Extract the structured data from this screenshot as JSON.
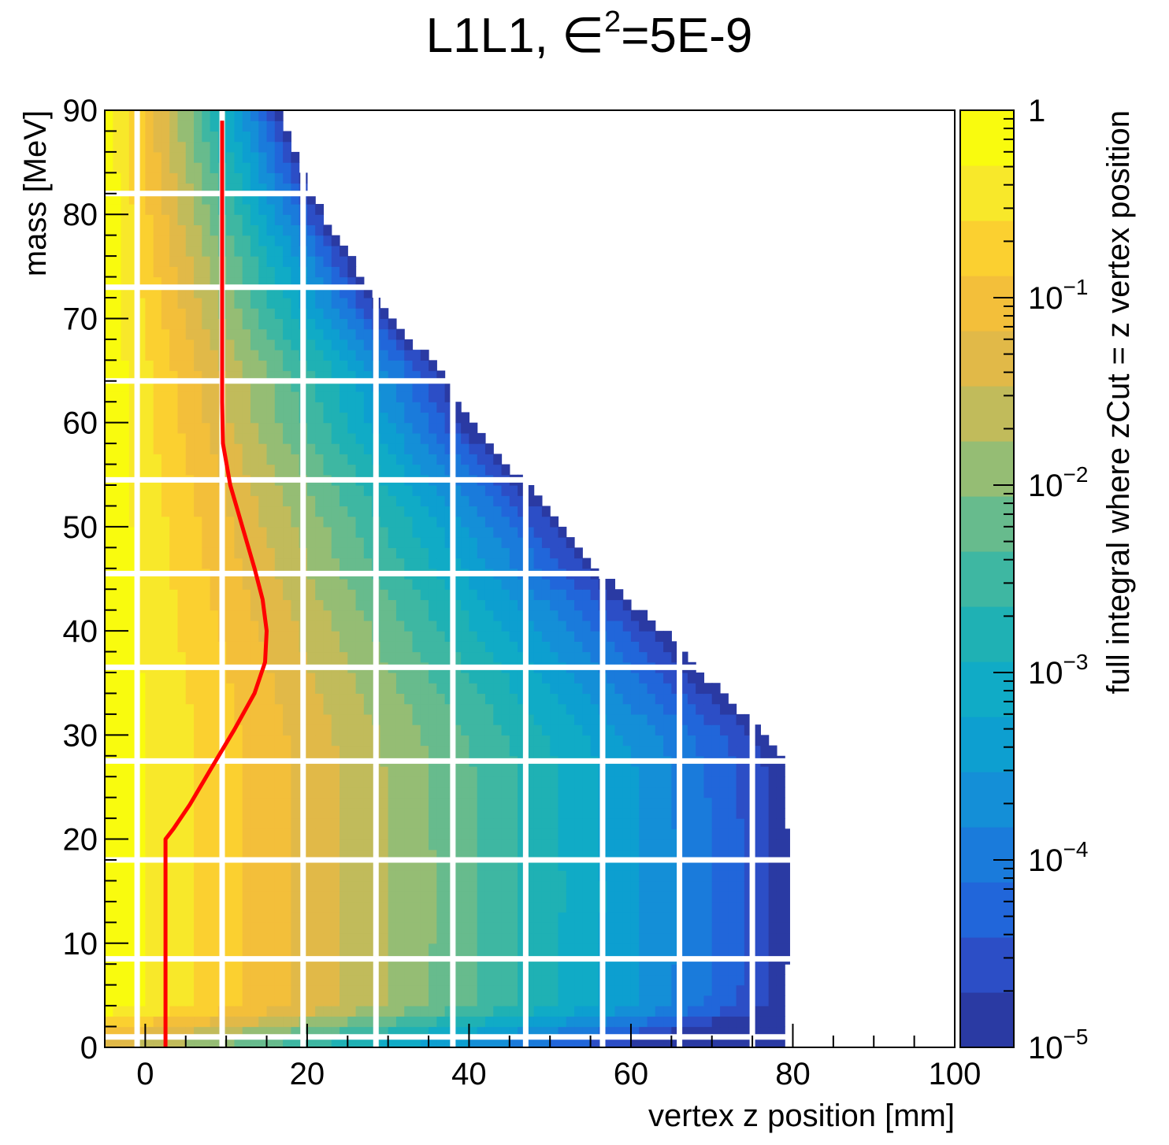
{
  "chart_data": {
    "type": "heatmap",
    "title_prefix": "L1L1, ",
    "title_symbol": "∈",
    "title_exponent": "2",
    "title_suffix": "=5E-9",
    "xlabel": "vertex z position [mm]",
    "ylabel": "mass [MeV]",
    "zlabel": "full integral where zCut = z vertex position",
    "xlim": [
      -5,
      100
    ],
    "ylim": [
      0,
      90
    ],
    "x_ticks": [
      "0",
      "20",
      "40",
      "60",
      "80",
      "100"
    ],
    "x_tick_values": [
      0,
      20,
      40,
      60,
      80,
      100
    ],
    "y_ticks": [
      "0",
      "10",
      "20",
      "30",
      "40",
      "50",
      "60",
      "70",
      "80",
      "90"
    ],
    "y_tick_values": [
      0,
      10,
      20,
      30,
      40,
      50,
      60,
      70,
      80,
      90
    ],
    "z_scale": "log",
    "zlim": [
      1e-05,
      1
    ],
    "z_ticks": [
      {
        "base": "1",
        "exp": "",
        "value": 1
      },
      {
        "base": "10",
        "exp": "−1",
        "value": 0.1
      },
      {
        "base": "10",
        "exp": "−2",
        "value": 0.01
      },
      {
        "base": "10",
        "exp": "−3",
        "value": 0.001
      },
      {
        "base": "10",
        "exp": "−4",
        "value": 0.0001
      },
      {
        "base": "10",
        "exp": "−5",
        "value": 1e-05
      }
    ],
    "palette": [
      "#2a3aa3",
      "#2c4ec6",
      "#2166da",
      "#1a7bdb",
      "#148fd7",
      "#0d9fd0",
      "#10abc6",
      "#1fb1b4",
      "#3eb7a2",
      "#67bb8d",
      "#95bd74",
      "#c1bb5b",
      "#e1b948",
      "#f3bf3a",
      "#fbd030",
      "#f8e82a",
      "#f9fb0e"
    ],
    "grid": "white lines at x = -1, 9.5, 19.5, 28.5, 38, 47, 56.5, 66, 75, 80; y = 1, 8.5, 18, 27.5, 36.5, 45.5, 54.5, 64, 73, 82",
    "max_z_at_mass": [
      {
        "mass": 1,
        "max_z": 79
      },
      {
        "mass": 15,
        "max_z": 80
      },
      {
        "mass": 27,
        "max_z": 79
      },
      {
        "mass": 30,
        "max_z": 77
      },
      {
        "mass": 35,
        "max_z": 70
      },
      {
        "mass": 40,
        "max_z": 64
      },
      {
        "mass": 45,
        "max_z": 57
      },
      {
        "mass": 50,
        "max_z": 52
      },
      {
        "mass": 55,
        "max_z": 46
      },
      {
        "mass": 60,
        "max_z": 40
      },
      {
        "mass": 65,
        "max_z": 37
      },
      {
        "mass": 70,
        "max_z": 30
      },
      {
        "mass": 75,
        "max_z": 26
      },
      {
        "mass": 80,
        "max_z": 22
      },
      {
        "mass": 85,
        "max_z": 19
      },
      {
        "mass": 89,
        "max_z": 17
      }
    ],
    "series": [
      {
        "color": "#ff0000",
        "x": [
          2.5,
          2.5,
          3.5,
          5.5,
          8.0,
          11.0,
          13.5,
          14.8,
          15.0,
          14.5,
          13.5,
          12.0,
          10.5,
          9.6,
          9.5,
          9.5
        ],
        "y": [
          0,
          20,
          21,
          23.3,
          26.6,
          30.5,
          34,
          37,
          40,
          43,
          46,
          50,
          54,
          58,
          62,
          89
        ]
      }
    ]
  }
}
